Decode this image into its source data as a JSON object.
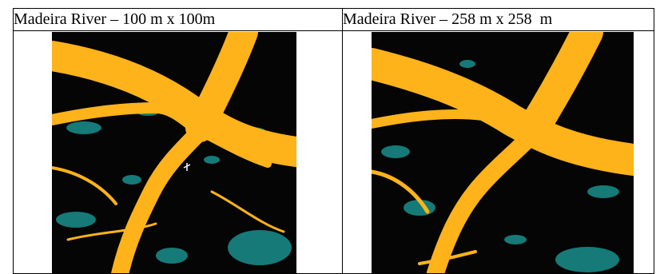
{
  "panels": [
    {
      "heading": "Madeira River – 100 m x 100m",
      "image_name": "madeira-river-100m-map",
      "colors": {
        "river": "#ffb31a",
        "land": "#050505",
        "vegetation": "#157a78"
      }
    },
    {
      "heading": "Madeira River – 258 m x 258  m",
      "image_name": "madeira-river-258m-map",
      "colors": {
        "river": "#ffb31a",
        "land": "#050505",
        "vegetation": "#157a78"
      }
    }
  ]
}
